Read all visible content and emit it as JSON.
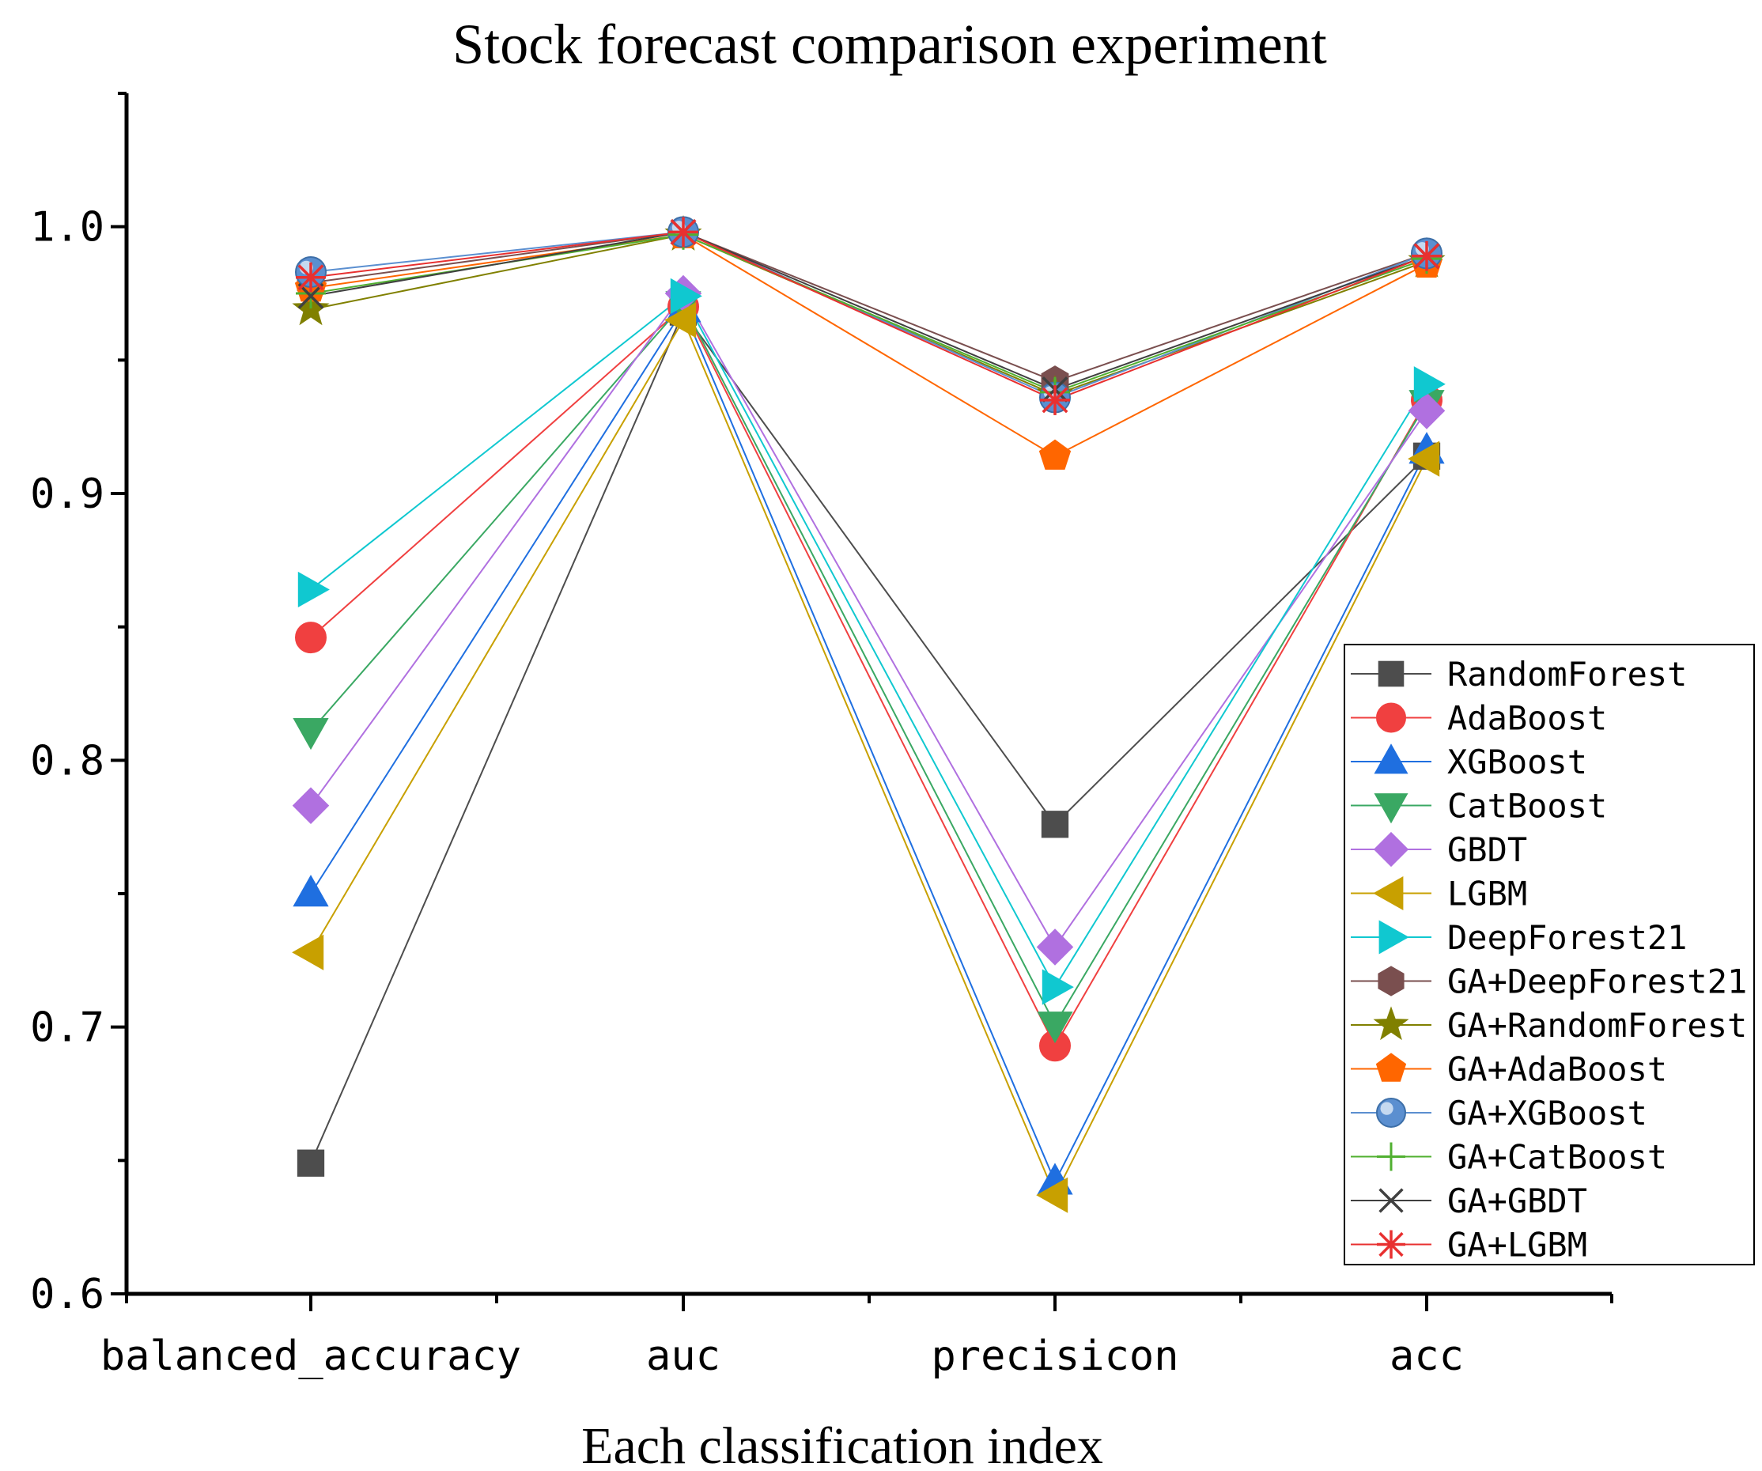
{
  "chart_data": {
    "type": "line",
    "title": "Stock forecast comparison experiment",
    "xlabel": "Each classification index",
    "ylabel": "",
    "categories": [
      "balanced_accuracy",
      "auc",
      "precisicon",
      "acc"
    ],
    "ylim": [
      0.6,
      1.05
    ],
    "yticks": [
      0.6,
      0.7,
      0.8,
      0.9,
      1.0
    ],
    "ytick_labels": [
      "0.6",
      "0.7",
      "0.8",
      "0.9",
      "1.0"
    ],
    "grid": false,
    "legend_position": "right",
    "series": [
      {
        "name": "RandomForest",
        "values": [
          0.649,
          0.968,
          0.776,
          0.914
        ],
        "color": "#4d4d4d",
        "marker": "square"
      },
      {
        "name": "AdaBoost",
        "values": [
          0.846,
          0.97,
          0.693,
          0.935
        ],
        "color": "#f04040",
        "marker": "circle"
      },
      {
        "name": "XGBoost",
        "values": [
          0.75,
          0.969,
          0.642,
          0.916
        ],
        "color": "#1f6fe0",
        "marker": "triangle-up"
      },
      {
        "name": "CatBoost",
        "values": [
          0.811,
          0.971,
          0.701,
          0.934
        ],
        "color": "#3aa863",
        "marker": "triangle-down"
      },
      {
        "name": "GBDT",
        "values": [
          0.783,
          0.975,
          0.73,
          0.931
        ],
        "color": "#b070e0",
        "marker": "diamond"
      },
      {
        "name": "LGBM",
        "values": [
          0.728,
          0.965,
          0.637,
          0.913
        ],
        "color": "#c8a000",
        "marker": "triangle-left"
      },
      {
        "name": "DeepForest21",
        "values": [
          0.864,
          0.974,
          0.715,
          0.941
        ],
        "color": "#10c8d0",
        "marker": "triangle-right"
      },
      {
        "name": "GA+DeepForest21",
        "values": [
          0.979,
          0.998,
          0.942,
          0.99
        ],
        "color": "#7a4f4f",
        "marker": "hexagon"
      },
      {
        "name": "GA+RandomForest",
        "values": [
          0.969,
          0.997,
          0.937,
          0.987
        ],
        "color": "#808000",
        "marker": "star"
      },
      {
        "name": "GA+AdaBoost",
        "values": [
          0.977,
          0.997,
          0.914,
          0.986
        ],
        "color": "#ff6600",
        "marker": "pentagon"
      },
      {
        "name": "GA+XGBoost",
        "values": [
          0.983,
          0.998,
          0.936,
          0.99
        ],
        "color": "#5b8fd0",
        "marker": "sphere"
      },
      {
        "name": "GA+CatBoost",
        "values": [
          0.975,
          0.997,
          0.938,
          0.988
        ],
        "color": "#50b030",
        "marker": "plus"
      },
      {
        "name": "GA+GBDT",
        "values": [
          0.974,
          0.998,
          0.939,
          0.989
        ],
        "color": "#404040",
        "marker": "x"
      },
      {
        "name": "GA+LGBM",
        "values": [
          0.981,
          0.998,
          0.935,
          0.989
        ],
        "color": "#e83030",
        "marker": "asterisk"
      }
    ]
  }
}
